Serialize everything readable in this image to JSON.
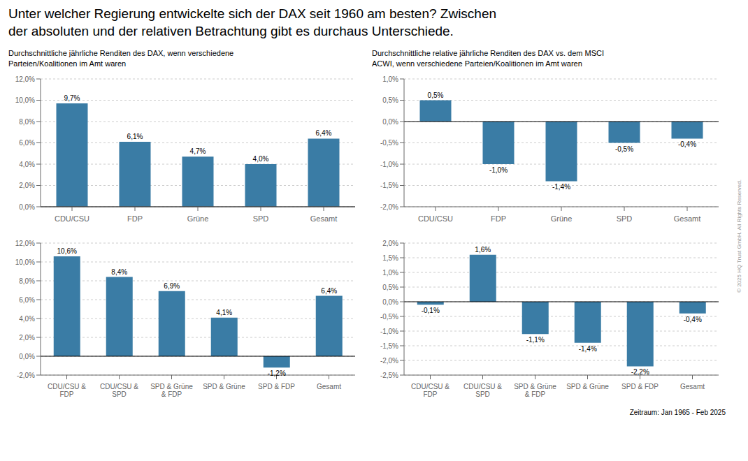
{
  "title": "Unter welcher Regierung entwickelte sich der DAX seit 1960 am besten? Zwischen\nder absoluten und der relativen Betrachtung gibt es durchaus Unterschiede.",
  "annotations": [
    "Zeitraum: Jan 1965 - Feb 2025",
    "© 2025 HQ Trust GmbH. All Rights Reserved."
  ],
  "chart_data": [
    {
      "type": "bar",
      "subtitle": "Durchschnittliche jährliche Renditen des DAX, wenn verschiedene\nParteien/Koalitionen im Amt waren",
      "categories": [
        "CDU/CSU",
        "FDP",
        "Grüne",
        "SPD",
        "Gesamt"
      ],
      "values": [
        9.7,
        6.1,
        4.7,
        4.0,
        6.4
      ],
      "value_labels": [
        "9,7%",
        "6,1%",
        "4,7%",
        "4,0%",
        "6,4%"
      ],
      "color": "#3a7ca5",
      "ylim": [
        0,
        12
      ],
      "yticks": [
        {
          "value": 0,
          "label": "0,0%"
        },
        {
          "value": 2,
          "label": "2,0%"
        },
        {
          "value": 4,
          "label": "4,0%"
        },
        {
          "value": 6,
          "label": "6,0%"
        },
        {
          "value": 8,
          "label": "8,0%"
        },
        {
          "value": 10,
          "label": "10,0%"
        },
        {
          "value": 12,
          "label": "12,0%"
        }
      ],
      "grid": true,
      "data_labels": true
    },
    {
      "type": "bar",
      "subtitle": "Durchschnittliche relative jährliche Renditen des DAX vs. dem MSCI\nACWI, wenn verschiedene Parteien/Koalitionen im Amt waren",
      "categories": [
        "CDU/CSU",
        "FDP",
        "Grüne",
        "SPD",
        "Gesamt"
      ],
      "values": [
        0.5,
        -1.0,
        -1.4,
        -0.5,
        -0.4
      ],
      "value_labels": [
        "0,5%",
        "-1,0%",
        "-1,4%",
        "-0,5%",
        "-0,4%"
      ],
      "color": "#3a7ca5",
      "ylim": [
        -2.0,
        1.0
      ],
      "yticks": [
        {
          "value": -2.0,
          "label": "-2,0%"
        },
        {
          "value": -1.5,
          "label": "-1,5%"
        },
        {
          "value": -1.0,
          "label": "-1,0%"
        },
        {
          "value": -0.5,
          "label": "-0,5%"
        },
        {
          "value": 0.0,
          "label": "0,0%"
        },
        {
          "value": 0.5,
          "label": "0,5%"
        },
        {
          "value": 1.0,
          "label": "1,0%"
        }
      ],
      "grid": true,
      "data_labels": true
    },
    {
      "type": "bar",
      "categories": [
        "CDU/CSU &\nFDP",
        "CDU/CSU &\nSPD",
        "SPD & Grüne\n& FDP",
        "SPD & Grüne",
        "SPD & FDP",
        "Gesamt"
      ],
      "values": [
        10.6,
        8.4,
        6.9,
        4.1,
        -1.2,
        6.4
      ],
      "value_labels": [
        "10,6%",
        "8,4%",
        "6,9%",
        "4,1%",
        "-1,2%",
        "6,4%"
      ],
      "color": "#3a7ca5",
      "ylim": [
        -2,
        12
      ],
      "yticks": [
        {
          "value": -2,
          "label": "-2,0%"
        },
        {
          "value": 0,
          "label": "0,0%"
        },
        {
          "value": 2,
          "label": "2,0%"
        },
        {
          "value": 4,
          "label": "4,0%"
        },
        {
          "value": 6,
          "label": "6,0%"
        },
        {
          "value": 8,
          "label": "8,0%"
        },
        {
          "value": 10,
          "label": "10,0%"
        },
        {
          "value": 12,
          "label": "12,0%"
        }
      ],
      "grid": true,
      "data_labels": true
    },
    {
      "type": "bar",
      "categories": [
        "CDU/CSU &\nFDP",
        "CDU/CSU &\nSPD",
        "SPD & Grüne\n& FDP",
        "SPD & Grüne",
        "SPD & FDP",
        "Gesamt"
      ],
      "values": [
        -0.1,
        1.6,
        -1.1,
        -1.4,
        -2.2,
        -0.4
      ],
      "value_labels": [
        "-0,1%",
        "1,6%",
        "-1,1%",
        "-1,4%",
        "-2,2%",
        "-0,4%"
      ],
      "color": "#3a7ca5",
      "ylim": [
        -2.5,
        2.0
      ],
      "yticks": [
        {
          "value": -2.5,
          "label": "-2,5%"
        },
        {
          "value": -2.0,
          "label": "-2,0%"
        },
        {
          "value": -1.5,
          "label": "-1,5%"
        },
        {
          "value": -1.0,
          "label": "-1,0%"
        },
        {
          "value": -0.5,
          "label": "-0,5%"
        },
        {
          "value": 0.0,
          "label": "0,0%"
        },
        {
          "value": 0.5,
          "label": "0,5%"
        },
        {
          "value": 1.0,
          "label": "1,0%"
        },
        {
          "value": 1.5,
          "label": "1,5%"
        },
        {
          "value": 2.0,
          "label": "2,0%"
        }
      ],
      "grid": true,
      "data_labels": true
    }
  ]
}
